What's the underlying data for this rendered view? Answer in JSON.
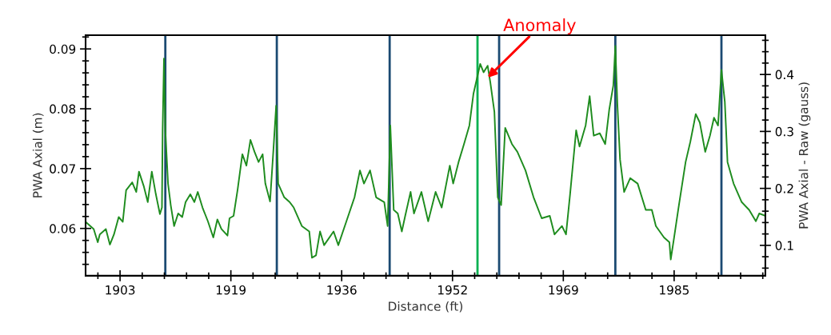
{
  "chart_data": {
    "type": "line",
    "xlabel": "Distance (ft)",
    "ylabel": "PWA Axial (m)",
    "y2label": "PWA Axial - Raw (gauss)",
    "xlim": [
      1897.9,
      1998.5
    ],
    "ylim": [
      0.0521,
      0.0923
    ],
    "y2lim": [
      0.0467,
      0.469
    ],
    "xticks": [
      {
        "value": 1903,
        "label": "1903"
      },
      {
        "value": 1919.4,
        "label": "1919"
      },
      {
        "value": 1935.8,
        "label": "1936"
      },
      {
        "value": 1952.2,
        "label": "1952"
      },
      {
        "value": 1968.6,
        "label": "1969"
      },
      {
        "value": 1985,
        "label": "1985"
      }
    ],
    "yticks": [
      {
        "value": 0.06,
        "label": "0.06"
      },
      {
        "value": 0.07,
        "label": "0.07"
      },
      {
        "value": 0.08,
        "label": "0.08"
      },
      {
        "value": 0.09,
        "label": "0.09"
      }
    ],
    "y2ticks": [
      {
        "value": 0.1,
        "label": "0.1"
      },
      {
        "value": 0.2,
        "label": "0.2"
      },
      {
        "value": 0.3,
        "label": "0.3"
      },
      {
        "value": 0.4,
        "label": "0.4"
      }
    ],
    "grid": false,
    "legend": false,
    "series": [
      {
        "color": "#1e8c1e",
        "x": [
          1897.9,
          1899.1,
          1899.7,
          1900.0,
          1900.9,
          1901.5,
          1902.1,
          1902.8,
          1903.4,
          1903.9,
          1904.8,
          1905.4,
          1905.8,
          1906.5,
          1907.1,
          1907.7,
          1908.3,
          1908.9,
          1909.2,
          1909.3,
          1909.5,
          1909.7,
          1910.1,
          1910.5,
          1911.0,
          1911.6,
          1912.2,
          1912.7,
          1913.4,
          1914.0,
          1914.5,
          1915.2,
          1916.0,
          1916.8,
          1917.4,
          1918.0,
          1918.9,
          1919.2,
          1919.8,
          1920.4,
          1921.1,
          1921.7,
          1922.3,
          1922.9,
          1923.5,
          1924.1,
          1924.5,
          1925.2,
          1925.7,
          1926.1,
          1926.4,
          1927.3,
          1928.1,
          1928.7,
          1929.9,
          1931.0,
          1931.4,
          1932.0,
          1932.6,
          1933.2,
          1934.6,
          1935.3,
          1936.5,
          1937.7,
          1938.5,
          1939.1,
          1940.0,
          1940.9,
          1942.1,
          1942.6,
          1943.0,
          1943.5,
          1944.1,
          1944.7,
          1945.2,
          1946.0,
          1946.5,
          1947.6,
          1948.6,
          1949.7,
          1950.6,
          1951.8,
          1952.3,
          1953.1,
          1953.9,
          1954.7,
          1955.3,
          1956.3,
          1956.8,
          1957.4,
          1957.8,
          1958.4,
          1958.9,
          1959.4,
          1960.0,
          1961.0,
          1961.8,
          1963.0,
          1964.2,
          1965.4,
          1966.6,
          1967.3,
          1968.4,
          1969.0,
          1969.6,
          1970.5,
          1971.0,
          1971.9,
          1972.5,
          1973.1,
          1974.0,
          1974.8,
          1975.4,
          1976.0,
          1976.3,
          1976.6,
          1977.0,
          1977.6,
          1978.5,
          1979.6,
          1980.8,
          1981.7,
          1982.3,
          1983.5,
          1984.3,
          1984.5,
          1985.0,
          1985.6,
          1986.7,
          1987.4,
          1988.2,
          1988.8,
          1989.6,
          1990.3,
          1990.9,
          1991.5,
          1992.0,
          1992.5,
          1992.9,
          1993.8,
          1995.0,
          1996.1,
          1997.1,
          1997.6,
          1998.5
        ],
        "values": [
          0.0611,
          0.0599,
          0.0577,
          0.059,
          0.0599,
          0.0573,
          0.059,
          0.0619,
          0.0611,
          0.0664,
          0.0677,
          0.0661,
          0.0695,
          0.0671,
          0.0644,
          0.0695,
          0.0657,
          0.0624,
          0.0635,
          0.0764,
          0.0884,
          0.0764,
          0.0675,
          0.0639,
          0.0604,
          0.0625,
          0.0619,
          0.0644,
          0.0657,
          0.0644,
          0.0661,
          0.0635,
          0.0612,
          0.0585,
          0.0615,
          0.0599,
          0.0588,
          0.0617,
          0.0621,
          0.0665,
          0.0724,
          0.0705,
          0.0748,
          0.0728,
          0.0711,
          0.0724,
          0.0675,
          0.0645,
          0.0732,
          0.0805,
          0.0675,
          0.0652,
          0.0644,
          0.0635,
          0.0604,
          0.0595,
          0.0551,
          0.0555,
          0.0595,
          0.0572,
          0.0595,
          0.0572,
          0.0612,
          0.0652,
          0.0697,
          0.0675,
          0.0697,
          0.0652,
          0.0644,
          0.0604,
          0.0772,
          0.0631,
          0.0625,
          0.0595,
          0.0621,
          0.0661,
          0.0625,
          0.0661,
          0.0612,
          0.0661,
          0.0635,
          0.0705,
          0.0675,
          0.0711,
          0.0741,
          0.0772,
          0.0825,
          0.0875,
          0.0861,
          0.0872,
          0.0844,
          0.0795,
          0.0652,
          0.0639,
          0.0768,
          0.0741,
          0.0728,
          0.0697,
          0.0652,
          0.0617,
          0.0621,
          0.059,
          0.0604,
          0.059,
          0.0657,
          0.0764,
          0.0737,
          0.0772,
          0.0821,
          0.0755,
          0.0759,
          0.0741,
          0.0799,
          0.0839,
          0.0905,
          0.0808,
          0.0715,
          0.0661,
          0.0684,
          0.0675,
          0.0631,
          0.0631,
          0.0604,
          0.0585,
          0.0577,
          0.0548,
          0.0585,
          0.0631,
          0.0711,
          0.0745,
          0.0791,
          0.0777,
          0.0728,
          0.0755,
          0.0785,
          0.0772,
          0.0865,
          0.0812,
          0.0711,
          0.0675,
          0.0644,
          0.0631,
          0.0612,
          0.0625,
          0.0621
        ]
      }
    ],
    "ref_lines": [
      {
        "axis": "x",
        "value": 1909.7,
        "color": "#1b4a72"
      },
      {
        "axis": "x",
        "value": 1926.2,
        "color": "#1b4a72"
      },
      {
        "axis": "x",
        "value": 1942.9,
        "color": "#1b4a72"
      },
      {
        "axis": "x",
        "value": 1955.9,
        "color": "#00b050"
      },
      {
        "axis": "x",
        "value": 1959.1,
        "color": "#1b4a72"
      },
      {
        "axis": "x",
        "value": 1976.3,
        "color": "#1b4a72"
      },
      {
        "axis": "x",
        "value": 1992.0,
        "color": "#1b4a72"
      }
    ],
    "annotations": [
      {
        "text": "Anomaly",
        "x": 1957.4,
        "y": 0.0852
      }
    ]
  }
}
